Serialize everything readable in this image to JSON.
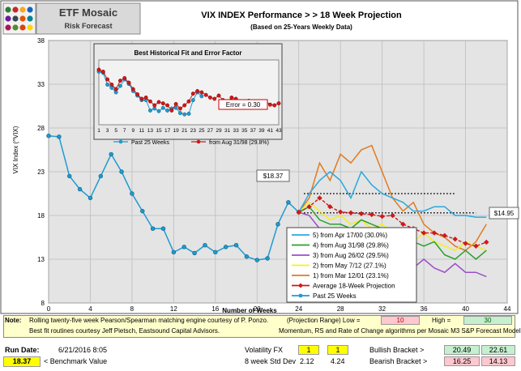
{
  "logo": {
    "brand": "ETF Mosaic",
    "subtitle": "Risk Forecast",
    "dot_colors": [
      "#2e7d32",
      "#c62828",
      "#f9a825",
      "#1565c0",
      "#6a1b9a",
      "#37474f",
      "#e65100",
      "#00838f",
      "#ad1457",
      "#558b2f",
      "#d84315",
      "#ffd600"
    ]
  },
  "header": {
    "title": "VIX  INDEX Performance  > > 18 Week Projection",
    "subtitle": "(Based on 25-Years Weekly Data)"
  },
  "colors": {
    "chart_bg": "#e4e4e4",
    "past": "#1f9bd0",
    "avg": "#cc1a1a",
    "s5": "#29a8e0",
    "s4": "#2aa02a",
    "s3": "#9a4fc9",
    "s2": "#f0f020",
    "s1": "#e07a20",
    "note_bg": "#ffffcc",
    "red_box": "#ffc7ce",
    "green_box": "#c6efce",
    "yellow_box": "#ffff00"
  },
  "chart_data": [
    {
      "type": "line",
      "title": "VIX INDEX Performance > > 18 Week Projection",
      "xlabel": "Number of Weeks",
      "ylabel": "VIX Index (^VIX)",
      "xlim": [
        0,
        44
      ],
      "ylim": [
        8,
        38
      ],
      "x_ticks": [
        0,
        4,
        8,
        12,
        16,
        20,
        24,
        28,
        32,
        36,
        40,
        44
      ],
      "y_ticks": [
        8,
        13,
        18,
        23,
        28,
        33,
        38
      ],
      "past": {
        "name": "Past 25 Weeks",
        "x": [
          0,
          1,
          2,
          3,
          4,
          5,
          6,
          7,
          8,
          9,
          10,
          11,
          12,
          13,
          14,
          15,
          16,
          17,
          18,
          19,
          20,
          21,
          22,
          23,
          24
        ],
        "values": [
          27.1,
          27.0,
          22.5,
          21.0,
          20.0,
          22.5,
          25.0,
          23.0,
          20.5,
          18.5,
          16.5,
          16.5,
          13.8,
          14.4,
          13.7,
          14.6,
          13.8,
          14.4,
          14.6,
          13.3,
          12.9,
          13.1,
          17.0,
          19.5,
          18.37
        ]
      },
      "projection": {
        "name": "Average 18-Week Projection",
        "x": [
          24,
          25,
          26,
          27,
          28,
          29,
          30,
          31,
          32,
          33,
          34,
          35,
          36,
          37,
          38,
          39,
          40,
          41,
          42
        ],
        "values": [
          18.37,
          19.0,
          20.0,
          19.0,
          18.4,
          18.3,
          18.2,
          18.1,
          17.9,
          18.0,
          17.0,
          16.5,
          16.0,
          16.0,
          15.7,
          15.3,
          14.8,
          14.5,
          14.95
        ]
      },
      "scenarios": [
        {
          "name": "5)  from Apr 17/00 (30.0%)",
          "x": [
            24,
            25,
            26,
            27,
            28,
            29,
            30,
            31,
            32,
            33,
            34,
            35,
            36,
            37,
            38,
            39,
            40,
            41,
            42
          ],
          "values": [
            18.37,
            20.5,
            22.0,
            23.0,
            22.0,
            20.0,
            23.0,
            21.5,
            20.5,
            20.0,
            19.5,
            18.5,
            18.5,
            19.0,
            19.0,
            18.0,
            18.0,
            17.8,
            17.8
          ]
        },
        {
          "name": "4)  from Aug 31/98 (29.8%)",
          "x": [
            24,
            25,
            26,
            27,
            28,
            29,
            30,
            31,
            32,
            33,
            34,
            35,
            36,
            37,
            38,
            39,
            40,
            41,
            42
          ],
          "values": [
            18.37,
            19.0,
            17.5,
            17.0,
            17.0,
            16.5,
            17.5,
            17.0,
            16.5,
            16.5,
            16.0,
            15.0,
            14.5,
            15.0,
            13.5,
            13.0,
            14.0,
            13.0,
            14.0
          ]
        },
        {
          "name": "3)  from Aug 26/02 (29.5%)",
          "x": [
            24,
            25,
            26,
            27,
            28,
            29,
            30,
            31,
            32,
            33,
            34,
            35,
            36,
            37,
            38,
            39,
            40,
            41,
            42
          ],
          "values": [
            18.37,
            18.0,
            16.5,
            16.0,
            16.5,
            15.5,
            15.0,
            16.0,
            14.5,
            13.0,
            12.5,
            12.0,
            13.0,
            12.0,
            11.5,
            12.5,
            11.5,
            11.5,
            11.0
          ]
        },
        {
          "name": "2)  from May 7/12 (27.1%)",
          "x": [
            24,
            25,
            26,
            27,
            28,
            29,
            30,
            31,
            32,
            33,
            34,
            35,
            36,
            37,
            38,
            39,
            40,
            41,
            42
          ],
          "values": [
            18.37,
            19.5,
            18.5,
            17.5,
            18.0,
            17.0,
            17.5,
            16.5,
            17.0,
            16.0,
            15.5,
            15.0,
            16.0,
            15.0,
            14.5,
            14.0,
            15.0,
            14.5,
            14.0
          ]
        },
        {
          "name": "1)  from Mar 12/01 (23.1%)",
          "x": [
            24,
            25,
            26,
            27,
            28,
            29,
            30,
            31,
            32,
            33,
            34,
            35,
            36,
            37,
            38,
            39,
            40,
            41,
            42
          ],
          "values": [
            18.37,
            20.0,
            24.0,
            22.0,
            25.0,
            24.0,
            25.5,
            26.0,
            23.0,
            20.0,
            18.5,
            19.5,
            17.0,
            16.0,
            15.5,
            14.5,
            14.0,
            15.0,
            17.0
          ]
        }
      ],
      "labels": {
        "current": "$18.37",
        "end": "$14.95"
      },
      "bands": [
        20.5,
        18.3
      ],
      "legend_position": "bottom-right",
      "legend": [
        "5)  from Apr 17/00 (30.0%)",
        "4)  from Aug 31/98 (29.8%)",
        "3)  from Aug 26/02 (29.5%)",
        "2)  from May 7/12 (27.1%)",
        "1)  from Mar 12/01 (23.1%)",
        "Average 18-Week Projection",
        "Past 25 Weeks"
      ]
    },
    {
      "type": "line",
      "title": "Best  Historical Fit and Error Factor",
      "x_ticks": [
        "1",
        "3",
        "5",
        "7",
        "9",
        "11",
        "13",
        "15",
        "17",
        "19",
        "21",
        "23",
        "25",
        "27",
        "29",
        "31",
        "33",
        "35",
        "37",
        "39",
        "41",
        "43"
      ],
      "ylim": [
        0,
        1
      ],
      "series": [
        {
          "name": "Past 25 Weeks",
          "x": [
            1,
            2,
            3,
            4,
            5,
            6,
            7,
            8,
            9,
            10,
            11,
            12,
            13,
            14,
            15,
            16,
            17,
            18,
            19,
            20,
            21,
            22,
            23,
            24,
            25
          ],
          "values": [
            0.82,
            0.8,
            0.62,
            0.57,
            0.5,
            0.6,
            0.7,
            0.63,
            0.52,
            0.45,
            0.38,
            0.38,
            0.22,
            0.25,
            0.21,
            0.26,
            0.22,
            0.25,
            0.26,
            0.18,
            0.16,
            0.17,
            0.38,
            0.5,
            0.44
          ]
        },
        {
          "name": "from Aug 31/98 (29.8%)",
          "x": [
            1,
            2,
            3,
            4,
            5,
            6,
            7,
            8,
            9,
            10,
            11,
            12,
            13,
            14,
            15,
            16,
            17,
            18,
            19,
            20,
            21,
            22,
            23,
            24,
            25,
            26,
            27,
            28,
            29,
            30,
            31,
            32,
            33,
            34,
            35,
            36,
            37,
            38,
            39,
            40,
            41,
            42,
            43
          ],
          "values": [
            0.85,
            0.82,
            0.7,
            0.62,
            0.55,
            0.68,
            0.72,
            0.65,
            0.55,
            0.47,
            0.4,
            0.42,
            0.36,
            0.3,
            0.35,
            0.33,
            0.3,
            0.22,
            0.32,
            0.25,
            0.3,
            0.36,
            0.48,
            0.52,
            0.5,
            0.46,
            0.42,
            0.4,
            0.45,
            0.38,
            0.35,
            0.42,
            0.4,
            0.36,
            0.33,
            0.37,
            0.32,
            0.34,
            0.3,
            0.36,
            0.31,
            0.3,
            0.33
          ]
        }
      ],
      "error_label": "Error = 0.30",
      "legend": [
        "Past 25 Weeks",
        "from Aug 31/98 (29.8%)"
      ]
    }
  ],
  "footer": {
    "note_label": "Note:",
    "note_line1": "Rolling twenty-five week Pearson/Spearman matching engine courtesy of P. Ponzo.",
    "proj_range_label": "(Projection Range) Low =",
    "proj_low": "10",
    "high_label": "High =",
    "proj_high": "30",
    "note_line2": "Best fit routines courtesy Jeff Pietsch, Eastsound Capital Advisors.",
    "note_line3": "Momentum, RS and Rate of Change algorithms per Mosaic M3 S&P Forecast Model",
    "run_date_label": "Run Date:",
    "run_date": "6/21/2016 8:05",
    "benchmark_value": "18.37",
    "benchmark_label": "< Benchmark Value",
    "volatility_label": "Volatility FX",
    "vol_1": "1",
    "vol_2": "1",
    "stddev_label": "8 week Std Dev",
    "std_1": "2.12",
    "std_2": "4.24",
    "bullish_label": "Bullish Bracket >",
    "bull_1": "20.49",
    "bull_2": "22.61",
    "bearish_label": "Bearish Bracket >",
    "bear_1": "16.25",
    "bear_2": "14.13"
  }
}
